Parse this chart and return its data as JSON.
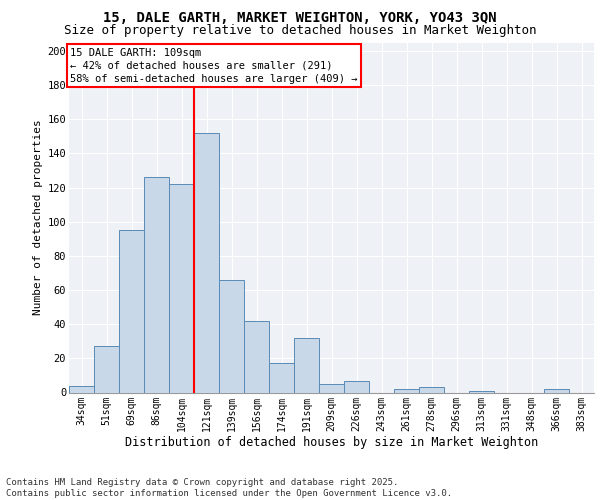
{
  "title1": "15, DALE GARTH, MARKET WEIGHTON, YORK, YO43 3QN",
  "title2": "Size of property relative to detached houses in Market Weighton",
  "xlabel": "Distribution of detached houses by size in Market Weighton",
  "ylabel": "Number of detached properties",
  "categories": [
    "34sqm",
    "51sqm",
    "69sqm",
    "86sqm",
    "104sqm",
    "121sqm",
    "139sqm",
    "156sqm",
    "174sqm",
    "191sqm",
    "209sqm",
    "226sqm",
    "243sqm",
    "261sqm",
    "278sqm",
    "296sqm",
    "313sqm",
    "331sqm",
    "348sqm",
    "366sqm",
    "383sqm"
  ],
  "values": [
    4,
    27,
    95,
    126,
    122,
    152,
    66,
    42,
    17,
    32,
    5,
    7,
    0,
    2,
    3,
    0,
    1,
    0,
    0,
    2,
    0
  ],
  "bar_color": "#c8d8e8",
  "bar_edge_color": "#5a8ab5",
  "vline_x": 4.5,
  "vline_color": "red",
  "annotation_text": "15 DALE GARTH: 109sqm\n← 42% of detached houses are smaller (291)\n58% of semi-detached houses are larger (409) →",
  "ylim": [
    0,
    205
  ],
  "yticks": [
    0,
    20,
    40,
    60,
    80,
    100,
    120,
    140,
    160,
    180,
    200
  ],
  "background_color": "#eef2f7",
  "footer": "Contains HM Land Registry data © Crown copyright and database right 2025.\nContains public sector information licensed under the Open Government Licence v3.0.",
  "title_fontsize": 10,
  "subtitle_fontsize": 9,
  "annot_fontsize": 7.5,
  "xlabel_fontsize": 8.5,
  "ylabel_fontsize": 8,
  "footer_fontsize": 6.5,
  "tick_fontsize": 7,
  "ytick_fontsize": 7.5
}
